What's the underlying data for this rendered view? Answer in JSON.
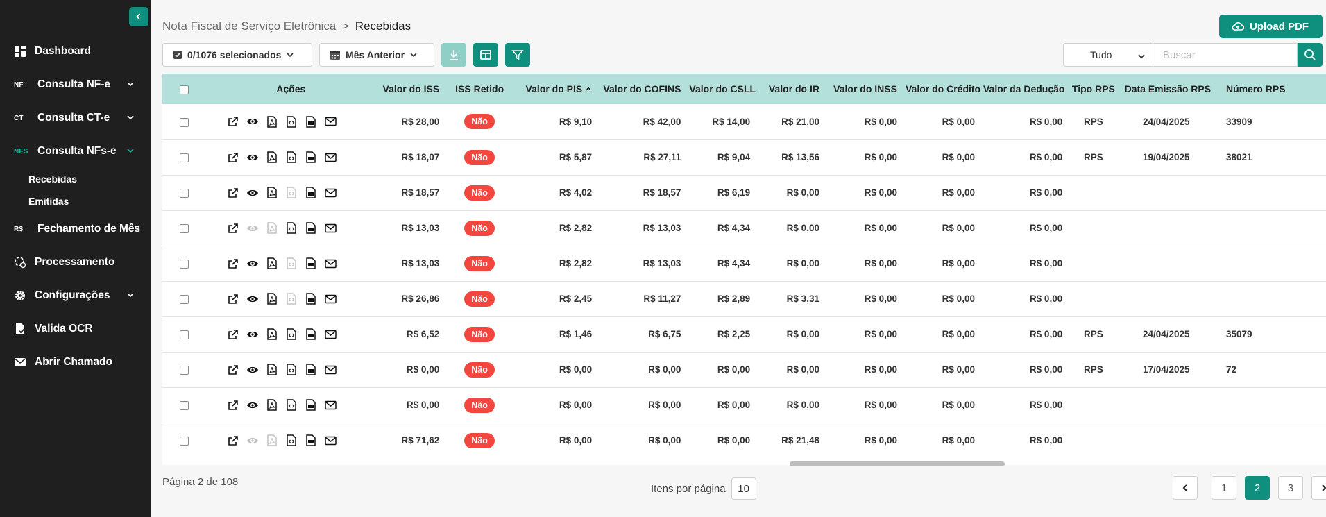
{
  "sidebar": {
    "items": [
      {
        "label": "Dashboard",
        "icon": "grid-icon"
      },
      {
        "label": "Consulta NF-e",
        "icon_text": "NF",
        "expandable": true
      },
      {
        "label": "Consulta CT-e",
        "icon_text": "CT",
        "expandable": true
      },
      {
        "label": "Consulta NFs-e",
        "icon_text": "NFS",
        "expandable": true,
        "active": true
      },
      {
        "label": "Fechamento de Mês",
        "icon_text": "R$"
      },
      {
        "label": "Processamento",
        "icon": "processing-icon"
      },
      {
        "label": "Configurações",
        "icon": "gear-icon",
        "expandable": true
      },
      {
        "label": "Valida OCR",
        "icon": "document-check-icon"
      },
      {
        "label": "Abrir Chamado",
        "icon": "envelope-icon"
      }
    ],
    "subitems": [
      "Recebidas",
      "Emitidas"
    ]
  },
  "header": {
    "breadcrumb_root": "Nota Fiscal de Serviço Eletrônica",
    "breadcrumb_sep": ">",
    "breadcrumb_current": "Recebidas",
    "upload_label": "Upload PDF"
  },
  "toolbar": {
    "selected_label": "0/1076 selecionados",
    "period_label": "Mês Anterior",
    "filter_value": "Tudo",
    "search_placeholder": "Buscar"
  },
  "table": {
    "headers": [
      "Ações",
      "Valor do ISS",
      "ISS Retido",
      "Valor do PIS",
      "Valor do COFINS",
      "Valor do CSLL",
      "Valor do IR",
      "Valor do INSS",
      "Valor do Crédito",
      "Valor da Dedução",
      "Tipo RPS",
      "Data Emissão RPS",
      "Número RPS"
    ],
    "rows": [
      {
        "iss": "R$ 28,00",
        "retido": "Não",
        "pis": "R$ 9,10",
        "cofins": "R$ 42,00",
        "csll": "R$ 14,00",
        "ir": "R$ 21,00",
        "inss": "R$ 0,00",
        "credito": "R$ 0,00",
        "deducao": "R$ 0,00",
        "tipo": "RPS",
        "data": "24/04/2025",
        "numero": "33909",
        "dim": []
      },
      {
        "iss": "R$ 18,07",
        "retido": "Não",
        "pis": "R$ 5,87",
        "cofins": "R$ 27,11",
        "csll": "R$ 9,04",
        "ir": "R$ 13,56",
        "inss": "R$ 0,00",
        "credito": "R$ 0,00",
        "deducao": "R$ 0,00",
        "tipo": "RPS",
        "data": "19/04/2025",
        "numero": "38021",
        "dim": []
      },
      {
        "iss": "R$ 18,57",
        "retido": "Não",
        "pis": "R$ 4,02",
        "cofins": "R$ 18,57",
        "csll": "R$ 6,19",
        "ir": "R$ 0,00",
        "inss": "R$ 0,00",
        "credito": "R$ 0,00",
        "deducao": "R$ 0,00",
        "tipo": "",
        "data": "",
        "numero": "",
        "dim": [
          3
        ]
      },
      {
        "iss": "R$ 13,03",
        "retido": "Não",
        "pis": "R$ 2,82",
        "cofins": "R$ 13,03",
        "csll": "R$ 4,34",
        "ir": "R$ 0,00",
        "inss": "R$ 0,00",
        "credito": "R$ 0,00",
        "deducao": "R$ 0,00",
        "tipo": "",
        "data": "",
        "numero": "",
        "dim": [
          1,
          2
        ]
      },
      {
        "iss": "R$ 13,03",
        "retido": "Não",
        "pis": "R$ 2,82",
        "cofins": "R$ 13,03",
        "csll": "R$ 4,34",
        "ir": "R$ 0,00",
        "inss": "R$ 0,00",
        "credito": "R$ 0,00",
        "deducao": "R$ 0,00",
        "tipo": "",
        "data": "",
        "numero": "",
        "dim": [
          3
        ]
      },
      {
        "iss": "R$ 26,86",
        "retido": "Não",
        "pis": "R$ 2,45",
        "cofins": "R$ 11,27",
        "csll": "R$ 2,89",
        "ir": "R$ 3,31",
        "inss": "R$ 0,00",
        "credito": "R$ 0,00",
        "deducao": "R$ 0,00",
        "tipo": "",
        "data": "",
        "numero": "",
        "dim": [
          3
        ]
      },
      {
        "iss": "R$ 6,52",
        "retido": "Não",
        "pis": "R$ 1,46",
        "cofins": "R$ 6,75",
        "csll": "R$ 2,25",
        "ir": "R$ 0,00",
        "inss": "R$ 0,00",
        "credito": "R$ 0,00",
        "deducao": "R$ 0,00",
        "tipo": "RPS",
        "data": "24/04/2025",
        "numero": "35079",
        "dim": []
      },
      {
        "iss": "R$ 0,00",
        "retido": "Não",
        "pis": "R$ 0,00",
        "cofins": "R$ 0,00",
        "csll": "R$ 0,00",
        "ir": "R$ 0,00",
        "inss": "R$ 0,00",
        "credito": "R$ 0,00",
        "deducao": "R$ 0,00",
        "tipo": "RPS",
        "data": "17/04/2025",
        "numero": "72",
        "dim": []
      },
      {
        "iss": "R$ 0,00",
        "retido": "Não",
        "pis": "R$ 0,00",
        "cofins": "R$ 0,00",
        "csll": "R$ 0,00",
        "ir": "R$ 0,00",
        "inss": "R$ 0,00",
        "credito": "R$ 0,00",
        "deducao": "R$ 0,00",
        "tipo": "",
        "data": "",
        "numero": "",
        "dim": []
      },
      {
        "iss": "R$ 71,62",
        "retido": "Não",
        "pis": "R$ 0,00",
        "cofins": "R$ 0,00",
        "csll": "R$ 0,00",
        "ir": "R$ 21,48",
        "inss": "R$ 0,00",
        "credito": "R$ 0,00",
        "deducao": "R$ 0,00",
        "tipo": "",
        "data": "",
        "numero": "",
        "dim": [
          1,
          2
        ]
      }
    ],
    "action_icons": [
      "external-link-icon",
      "eye-icon",
      "pdf-icon",
      "xml-icon",
      "txt-icon",
      "envelope-icon"
    ],
    "sorted_column": "Valor do PIS"
  },
  "footer": {
    "page_info": "Página 2 de 108",
    "per_page_label": "Itens por página",
    "per_page_value": "10",
    "pages": [
      "1",
      "2",
      "3"
    ],
    "current_page": "2"
  },
  "colors": {
    "accent": "#0f8f7e",
    "header_bg": "#b3e0da",
    "badge": "#f2463f",
    "sidebar": "#1f1f1f"
  }
}
